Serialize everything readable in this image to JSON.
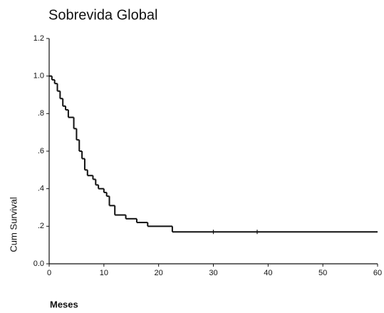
{
  "chart_data": {
    "type": "step",
    "title": "Sobrevida Global",
    "x_label": "Meses",
    "y_label": "Cum Survival",
    "x": [
      0,
      0.5,
      1,
      1.5,
      2,
      2.5,
      3,
      3.5,
      4.5,
      5,
      5.5,
      6,
      6.5,
      7,
      8,
      8.5,
      9,
      10,
      10.5,
      11,
      12,
      14,
      16,
      18,
      22.5,
      60
    ],
    "values": [
      1.0,
      0.98,
      0.96,
      0.92,
      0.88,
      0.84,
      0.82,
      0.78,
      0.72,
      0.66,
      0.6,
      0.56,
      0.5,
      0.47,
      0.45,
      0.42,
      0.4,
      0.38,
      0.36,
      0.31,
      0.26,
      0.24,
      0.22,
      0.2,
      0.17,
      0.17
    ],
    "censored": {
      "x": [
        30,
        38
      ],
      "values": [
        0.17,
        0.17
      ]
    },
    "color": "#111111",
    "xlim": [
      0,
      60
    ],
    "xticks": [
      0,
      10,
      20,
      30,
      40,
      50,
      60
    ],
    "ylim": [
      0,
      1.2
    ],
    "yticks": [
      {
        "value": 0,
        "label": "0.0"
      },
      {
        "value": 0.2,
        "label": ".2"
      },
      {
        "value": 0.4,
        "label": ".4"
      },
      {
        "value": 0.6,
        "label": ".6"
      },
      {
        "value": 0.8,
        "label": ".8"
      },
      {
        "value": 1.0,
        "label": "1.0"
      },
      1.2
    ],
    "grid": false
  }
}
